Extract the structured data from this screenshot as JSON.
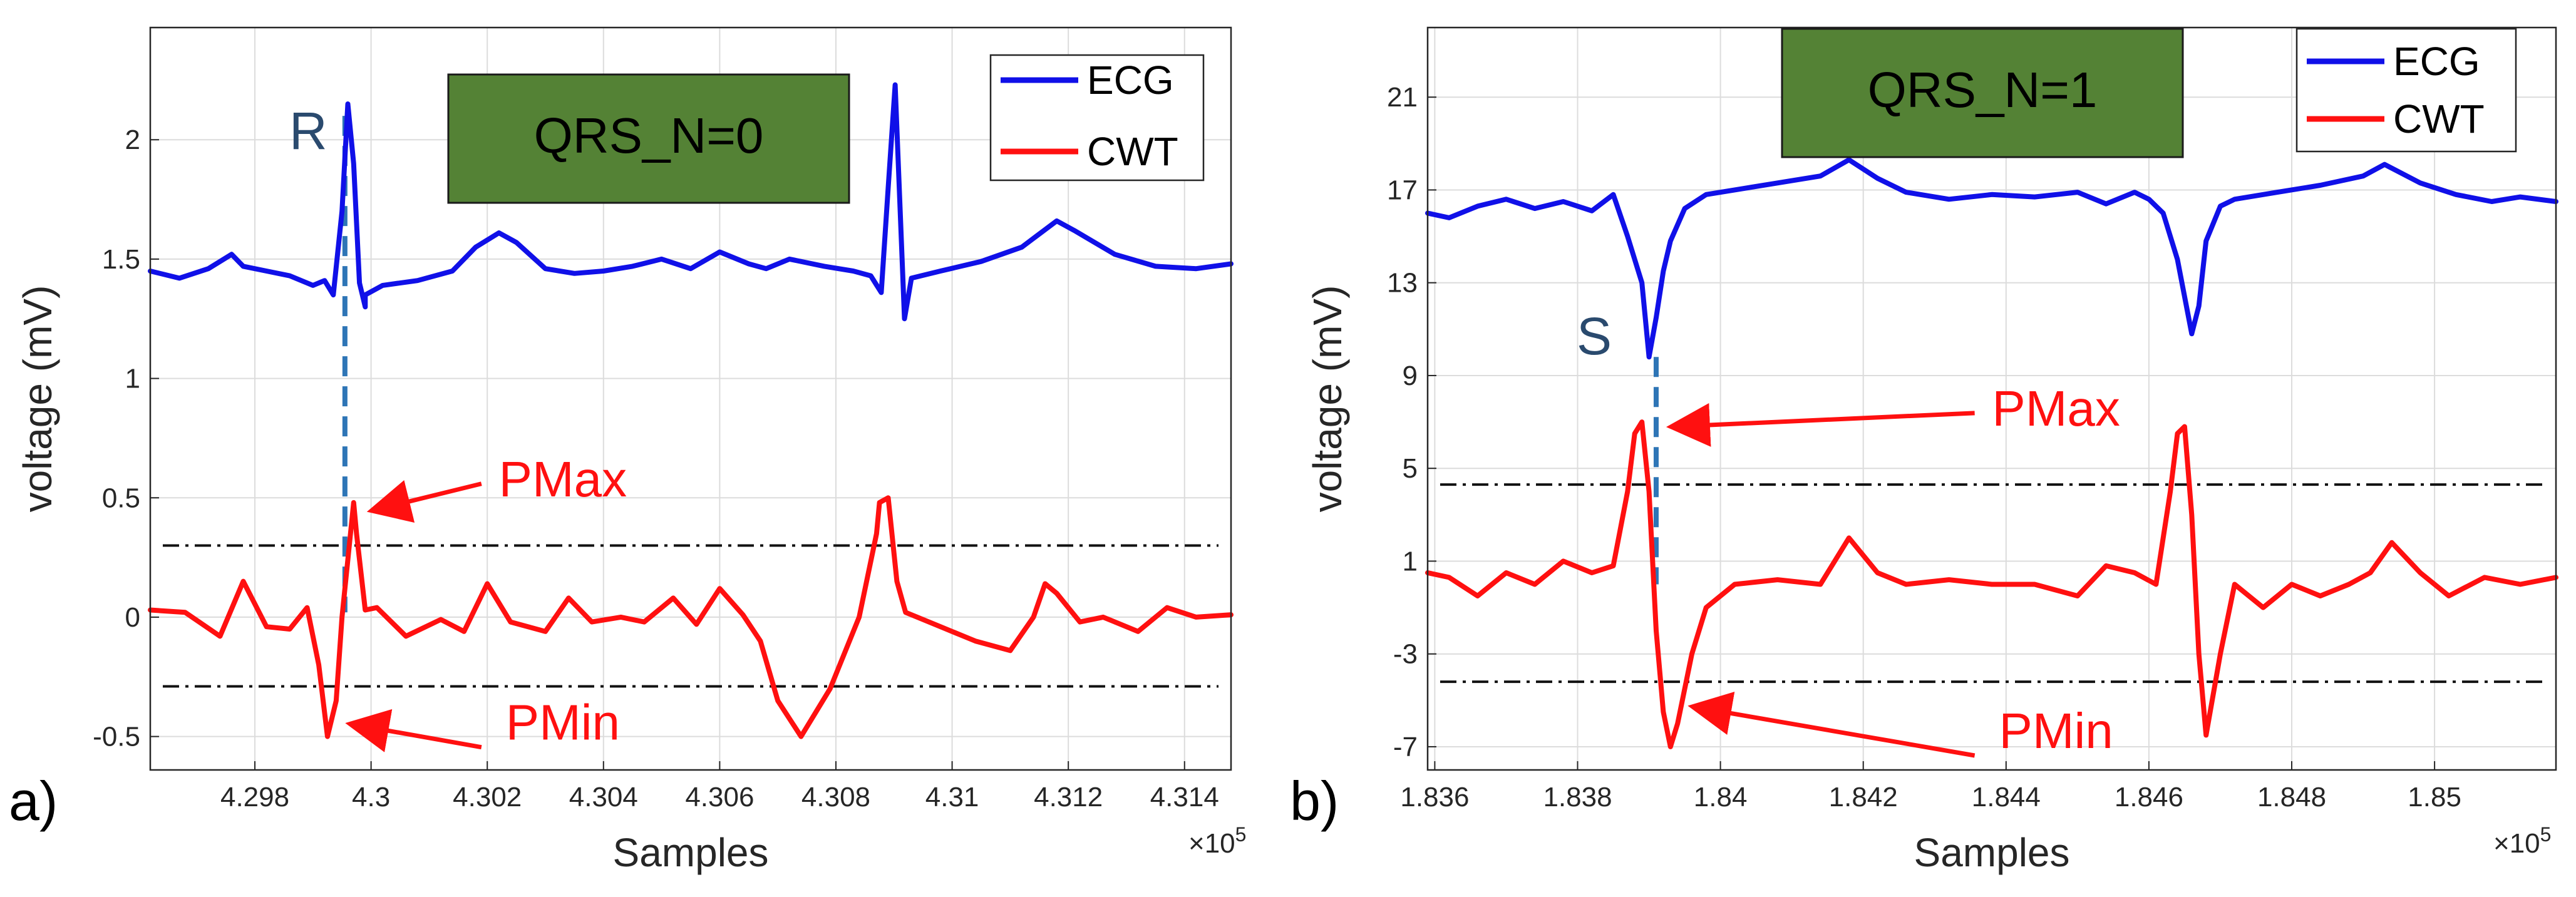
{
  "chart_data": [
    {
      "panel": "a)",
      "type": "line",
      "title": "",
      "xlabel": "Samples",
      "ylabel": "voltage (mV)",
      "x_exponent": "×10",
      "x_exponent_power": "5",
      "xlim": [
        4.2962,
        4.3148
      ],
      "ylim": [
        -0.64,
        2.47
      ],
      "xticks": [
        4.298,
        4.3,
        4.302,
        4.304,
        4.306,
        4.308,
        4.31,
        4.312,
        4.314
      ],
      "xtick_labels": [
        "4.298",
        "4.3",
        "4.302",
        "4.304",
        "4.306",
        "4.308",
        "4.31",
        "4.312",
        "4.314"
      ],
      "yticks": [
        -0.5,
        0,
        0.5,
        1,
        1.5,
        2
      ],
      "ytick_labels": [
        "-0.5",
        "0",
        "0.5",
        "1",
        "1.5",
        "2"
      ],
      "grid": true,
      "legend": {
        "position": "top-right",
        "entries": [
          "ECG",
          "CWT"
        ],
        "colors": [
          "#1010e8",
          "#ff1010"
        ]
      },
      "status_box": {
        "text": "QRS_N=0",
        "fill": "#548235"
      },
      "series": [
        {
          "name": "ECG",
          "color": "#1010e8",
          "x": [
            4.2962,
            4.2967,
            4.2972,
            4.2976,
            4.2978,
            4.2982,
            4.2986,
            4.299,
            4.2992,
            4.29935,
            4.2995,
            4.2996,
            4.2997,
            4.2998,
            4.2999,
            4.2999,
            4.3002,
            4.3008,
            4.3014,
            4.3018,
            4.3022,
            4.3025,
            4.303,
            4.3035,
            4.304,
            4.3045,
            4.305,
            4.3055,
            4.306,
            4.3065,
            4.3068,
            4.3072,
            4.3078,
            4.3083,
            4.3086,
            4.30878,
            4.3089,
            4.30902,
            4.30918,
            4.3093,
            4.3098,
            4.3105,
            4.3112,
            4.3118,
            4.3121,
            4.3128,
            4.3135,
            4.3142,
            4.3148
          ],
          "y": [
            1.45,
            1.42,
            1.46,
            1.52,
            1.47,
            1.45,
            1.43,
            1.39,
            1.41,
            1.35,
            1.7,
            2.15,
            1.9,
            1.4,
            1.3,
            1.35,
            1.39,
            1.41,
            1.45,
            1.55,
            1.61,
            1.57,
            1.46,
            1.44,
            1.45,
            1.47,
            1.5,
            1.46,
            1.53,
            1.48,
            1.46,
            1.5,
            1.47,
            1.45,
            1.43,
            1.36,
            1.8,
            2.23,
            1.25,
            1.42,
            1.45,
            1.49,
            1.55,
            1.66,
            1.62,
            1.52,
            1.47,
            1.46,
            1.48
          ]
        },
        {
          "name": "CWT",
          "color": "#ff1010",
          "x": [
            4.2962,
            4.2968,
            4.2974,
            4.2978,
            4.2982,
            4.2986,
            4.2989,
            4.2991,
            4.29925,
            4.2994,
            4.2995,
            4.2997,
            4.29975,
            4.2999,
            4.3001,
            4.3006,
            4.3012,
            4.3016,
            4.302,
            4.3024,
            4.303,
            4.3034,
            4.3038,
            4.3043,
            4.3047,
            4.3052,
            4.3056,
            4.306,
            4.3064,
            4.3067,
            4.307,
            4.3074,
            4.3079,
            4.3084,
            4.3087,
            4.30875,
            4.3089,
            4.30905,
            4.3092,
            4.3094,
            4.3098,
            4.3104,
            4.311,
            4.3114,
            4.3116,
            4.3118,
            4.3122,
            4.3126,
            4.3132,
            4.3137,
            4.3142,
            4.3148
          ],
          "y": [
            0.03,
            0.02,
            -0.08,
            0.15,
            -0.04,
            -0.05,
            0.04,
            -0.2,
            -0.5,
            -0.35,
            0.0,
            0.48,
            0.35,
            0.03,
            0.04,
            -0.08,
            -0.01,
            -0.06,
            0.14,
            -0.02,
            -0.06,
            0.08,
            -0.02,
            0.0,
            -0.02,
            0.08,
            -0.03,
            0.12,
            0.01,
            -0.1,
            -0.35,
            -0.5,
            -0.3,
            0.0,
            0.35,
            0.48,
            0.5,
            0.15,
            0.02,
            0.0,
            -0.04,
            -0.1,
            -0.14,
            0.0,
            0.14,
            0.1,
            -0.02,
            0.0,
            -0.06,
            0.04,
            0.0,
            0.01
          ]
        }
      ],
      "threshold_lines": [
        0.3,
        -0.29
      ],
      "peak_marker": {
        "label": "R",
        "x": 4.29955,
        "y_top": 2.1,
        "y_bottom": 0.02
      },
      "annotations": [
        {
          "text": "PMax",
          "x": 4.3033,
          "y": 0.58,
          "arrow_to": [
            4.29975,
            0.45
          ]
        },
        {
          "text": "PMin",
          "x": 4.3033,
          "y": -0.44,
          "arrow_to": [
            4.29938,
            -0.45
          ]
        }
      ]
    },
    {
      "panel": "b)",
      "type": "line",
      "title": "",
      "xlabel": "Samples",
      "ylabel": "voltage (mV)",
      "x_exponent": "×10",
      "x_exponent_power": "5",
      "xlim": [
        1.8359,
        1.8517
      ],
      "ylim": [
        -8.0,
        24.0
      ],
      "xticks": [
        1.836,
        1.838,
        1.84,
        1.842,
        1.844,
        1.846,
        1.848,
        1.85
      ],
      "xtick_labels": [
        "1.836",
        "1.838",
        "1.84",
        "1.842",
        "1.844",
        "1.846",
        "1.848",
        "1.85"
      ],
      "yticks": [
        -7,
        -3,
        1,
        5,
        9,
        13,
        17,
        21
      ],
      "ytick_labels": [
        "-7",
        "-3",
        "1",
        "5",
        "9",
        "13",
        "17",
        "21"
      ],
      "grid": true,
      "legend": {
        "position": "top-right",
        "entries": [
          "ECG",
          "CWT"
        ],
        "colors": [
          "#1010e8",
          "#ff1010"
        ]
      },
      "status_box": {
        "text": "QRS_N=1",
        "fill": "#548235"
      },
      "series": [
        {
          "name": "ECG",
          "color": "#1010e8",
          "x": [
            1.8359,
            1.8362,
            1.8366,
            1.837,
            1.8374,
            1.8378,
            1.8382,
            1.8385,
            1.8387,
            1.8389,
            1.839,
            1.8391,
            1.8392,
            1.8393,
            1.8395,
            1.8398,
            1.8402,
            1.8408,
            1.8414,
            1.8418,
            1.8422,
            1.8426,
            1.8432,
            1.8438,
            1.8444,
            1.845,
            1.8454,
            1.8458,
            1.846,
            1.8462,
            1.8464,
            1.8466,
            1.8467,
            1.8468,
            1.847,
            1.8472,
            1.8478,
            1.8484,
            1.849,
            1.8493,
            1.8498,
            1.8503,
            1.8508,
            1.8512,
            1.8517
          ],
          "y": [
            16.0,
            15.8,
            16.3,
            16.6,
            16.2,
            16.5,
            16.1,
            16.8,
            15.0,
            13.0,
            9.8,
            11.5,
            13.5,
            14.8,
            16.2,
            16.8,
            17.0,
            17.3,
            17.6,
            18.3,
            17.5,
            16.9,
            16.6,
            16.8,
            16.7,
            16.9,
            16.4,
            16.9,
            16.6,
            16.0,
            14.0,
            10.8,
            12.0,
            14.8,
            16.3,
            16.6,
            16.9,
            17.2,
            17.6,
            18.1,
            17.3,
            16.8,
            16.5,
            16.7,
            16.5
          ]
        },
        {
          "name": "CWT",
          "color": "#ff1010",
          "x": [
            1.8359,
            1.8362,
            1.8366,
            1.837,
            1.8374,
            1.8378,
            1.8382,
            1.8385,
            1.8387,
            1.8388,
            1.8389,
            1.839,
            1.8391,
            1.8392,
            1.8393,
            1.8394,
            1.8396,
            1.8398,
            1.8402,
            1.8408,
            1.8414,
            1.8418,
            1.8422,
            1.8426,
            1.8432,
            1.8438,
            1.8444,
            1.845,
            1.8454,
            1.8458,
            1.8461,
            1.8463,
            1.8464,
            1.8465,
            1.8466,
            1.8467,
            1.8468,
            1.847,
            1.8472,
            1.8476,
            1.848,
            1.8484,
            1.8488,
            1.8491,
            1.8494,
            1.8498,
            1.8502,
            1.8507,
            1.8512,
            1.8517
          ],
          "y": [
            0.5,
            0.3,
            -0.5,
            0.5,
            0.0,
            1.0,
            0.5,
            0.8,
            4.0,
            6.5,
            7.0,
            4.0,
            -2.0,
            -5.5,
            -7.0,
            -6.0,
            -3.0,
            -1.0,
            0.0,
            0.2,
            0.0,
            2.0,
            0.5,
            0.0,
            0.2,
            0.0,
            0.0,
            -0.5,
            0.8,
            0.5,
            0.0,
            4.0,
            6.5,
            6.8,
            3.0,
            -3.0,
            -6.5,
            -3.0,
            0.0,
            -1.0,
            0.0,
            -0.5,
            0.0,
            0.5,
            1.8,
            0.5,
            -0.5,
            0.3,
            0.0,
            0.3
          ]
        }
      ],
      "threshold_lines": [
        4.3,
        -4.2
      ],
      "peak_marker": {
        "label": "S",
        "x": 1.8391,
        "y_top": 9.8,
        "y_bottom": 0.0
      },
      "annotations": [
        {
          "text": "PMax",
          "x": 1.8447,
          "y": 7.6,
          "arrow_to": [
            1.8391,
            6.8
          ]
        },
        {
          "text": "PMin",
          "x": 1.8447,
          "y": -6.3,
          "arrow_to": [
            1.8394,
            -5.3
          ]
        }
      ]
    }
  ]
}
